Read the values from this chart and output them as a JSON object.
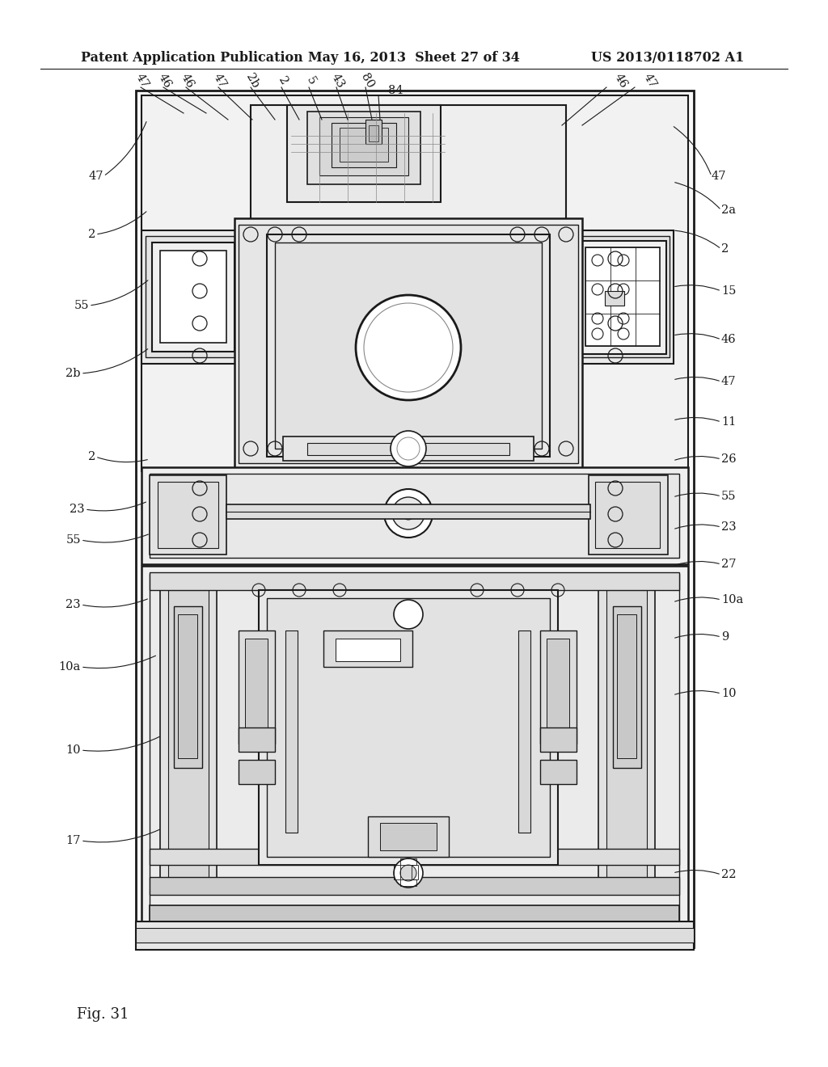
{
  "background_color": "#ffffff",
  "header_left": "Patent Application Publication",
  "header_center": "May 16, 2013  Sheet 27 of 34",
  "header_right": "US 2013/0118702 A1",
  "figure_label": "Fig. 31",
  "lc": "#1a1a1a",
  "tc": "#1a1a1a",
  "label_fontsize": 10.5,
  "header_fontsize": 11.5
}
